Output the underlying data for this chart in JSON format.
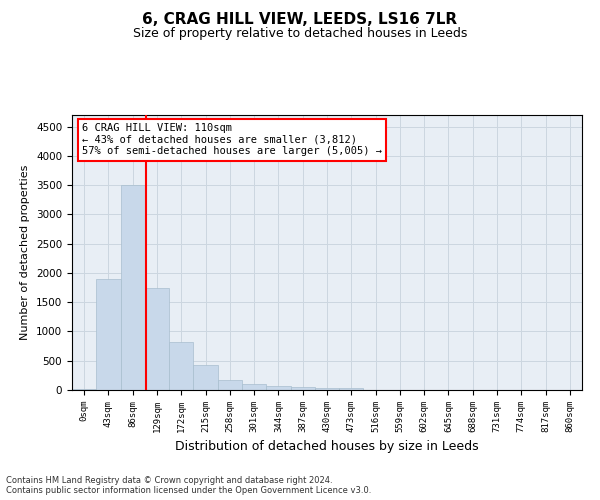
{
  "title": "6, CRAG HILL VIEW, LEEDS, LS16 7LR",
  "subtitle": "Size of property relative to detached houses in Leeds",
  "xlabel": "Distribution of detached houses by size in Leeds",
  "ylabel": "Number of detached properties",
  "bin_labels": [
    "0sqm",
    "43sqm",
    "86sqm",
    "129sqm",
    "172sqm",
    "215sqm",
    "258sqm",
    "301sqm",
    "344sqm",
    "387sqm",
    "430sqm",
    "473sqm",
    "516sqm",
    "559sqm",
    "602sqm",
    "645sqm",
    "688sqm",
    "731sqm",
    "774sqm",
    "817sqm",
    "860sqm"
  ],
  "bar_values": [
    20,
    1900,
    3500,
    1750,
    825,
    430,
    170,
    100,
    75,
    50,
    40,
    30,
    5,
    3,
    2,
    1,
    1,
    0,
    0,
    0,
    0
  ],
  "bar_color": "#c8d8ea",
  "bar_edge_color": "#a8bece",
  "vline_x": 2.56,
  "vline_color": "red",
  "annotation_text": "6 CRAG HILL VIEW: 110sqm\n← 43% of detached houses are smaller (3,812)\n57% of semi-detached houses are larger (5,005) →",
  "annotation_box_color": "white",
  "annotation_box_edge": "red",
  "ylim": [
    0,
    4700
  ],
  "yticks": [
    0,
    500,
    1000,
    1500,
    2000,
    2500,
    3000,
    3500,
    4000,
    4500
  ],
  "grid_color": "#ccd6e0",
  "background_color": "#e8eef5",
  "footnote": "Contains HM Land Registry data © Crown copyright and database right 2024.\nContains public sector information licensed under the Open Government Licence v3.0.",
  "title_fontsize": 11,
  "subtitle_fontsize": 9,
  "xlabel_fontsize": 9,
  "ylabel_fontsize": 8,
  "annotation_fontsize": 7.5
}
